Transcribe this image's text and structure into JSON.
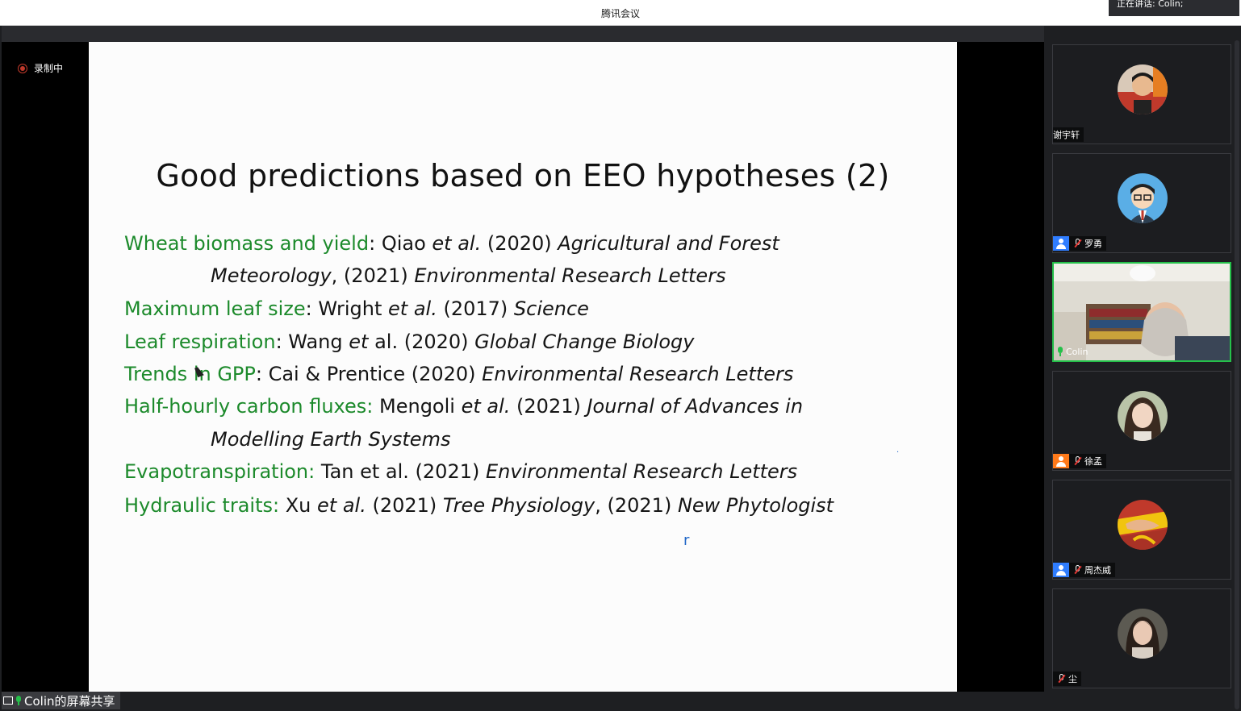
{
  "app": {
    "window_title": "腾讯会议",
    "speaking_indicator": "正在讲话: Colin;"
  },
  "recording": {
    "label": "录制中",
    "color": "#c0392b"
  },
  "share": {
    "label": "Colin的屏幕共享"
  },
  "slide": {
    "title": "Good predictions based on EEO hypotheses (2)",
    "lines": [
      {
        "topic": "Wheat biomass and yield",
        "sep": ": ",
        "author": "Qiao ",
        "etal": "et al.",
        "year": " (2020) ",
        "journal": "Agricultural and Forest"
      },
      {
        "cont_journal": "Meteorology",
        "rest": ", (2021) ",
        "journal2": "Environmental Research Letters"
      },
      {
        "topic": "Maximum leaf size",
        "sep": ": ",
        "author": "Wright ",
        "etal": "et al.",
        "year": " (2017) ",
        "journal": "Science"
      },
      {
        "topic": "Leaf respiration",
        "sep": ": ",
        "author": "Wang ",
        "etal": "et",
        "year": " al. (2020) ",
        "journal": "Global Change Biology"
      },
      {
        "topic": "Trends in GPP",
        "sep": ": ",
        "author": "Cai & Prentice (2020) ",
        "journal": "Environmental Research Letters"
      },
      {
        "topic": "Half-hourly carbon fluxes:",
        "sep": " ",
        "author": "Mengoli ",
        "etal": "et al.",
        "year": " (2021) ",
        "journal": "Journal of Advances in"
      },
      {
        "cont_journal": "Modelling Earth Systems"
      },
      {
        "topic": "Evapotranspiration:",
        "sep": " ",
        "author": "Tan et al. (2021) ",
        "journal": "Environmental Research Letters"
      },
      {
        "topic": "Hydraulic traits:",
        "sep": " ",
        "author": "Xu ",
        "etal": "et al.",
        "year": " (2021) ",
        "journal": "Tree Physiology",
        "rest": ", (2021) ",
        "journal2": "New Phytologist"
      }
    ],
    "annotation": "r",
    "topic_color": "#1c8a2b"
  },
  "participants": [
    {
      "name": "谢宇轩",
      "badge": "none",
      "muted": false
    },
    {
      "name": "罗勇",
      "badge": "user-blue",
      "muted": true
    },
    {
      "name": "Colin",
      "badge": "none",
      "muted": false,
      "speaking": true,
      "video": true
    },
    {
      "name": "徐孟",
      "badge": "user-orange",
      "muted": true
    },
    {
      "name": "周杰威",
      "badge": "user-blue",
      "muted": true
    },
    {
      "name": "尘",
      "badge": "none",
      "muted": true
    }
  ]
}
